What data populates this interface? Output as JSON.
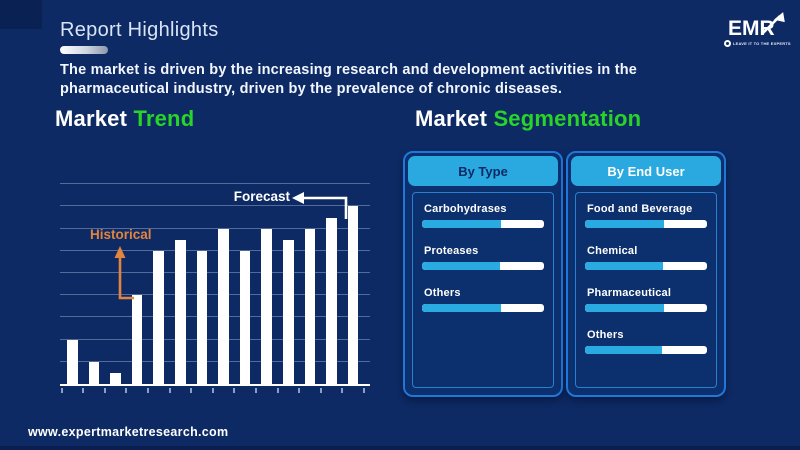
{
  "header": {
    "title": "Report Highlights",
    "headline": "The market is driven by the increasing research and development activities in the pharmaceutical industry, driven by the prevalence of chronic diseases."
  },
  "logo": {
    "name": "EMR",
    "tagline": "LEAVE IT TO THE EXPERTS"
  },
  "section_titles": {
    "trend_white": "Market",
    "trend_green": "Trend",
    "segmentation_white": "Market",
    "segmentation_green": "Segmentation"
  },
  "chart_data": {
    "type": "bar",
    "title": "Market Trend",
    "values": [
      2,
      1,
      0.5,
      4,
      6,
      6.5,
      6,
      7,
      6,
      7,
      6.5,
      7,
      7.5,
      8
    ],
    "ylim": [
      0,
      9
    ],
    "grid": "horizontal-on",
    "bar_color": "#ffffff",
    "annotations": {
      "historical_label": "Historical",
      "forecast_label": "Forecast"
    }
  },
  "segmentation": {
    "panels": [
      {
        "header": "By Type",
        "items": [
          {
            "label": "Carbohydrases",
            "value_pct": 65
          },
          {
            "label": "Proteases",
            "value_pct": 64
          },
          {
            "label": "Others",
            "value_pct": 65
          }
        ]
      },
      {
        "header": "By End User",
        "items": [
          {
            "label": "Food and Beverage",
            "value_pct": 65
          },
          {
            "label": "Chemical",
            "value_pct": 64
          },
          {
            "label": "Pharmaceutical",
            "value_pct": 65
          },
          {
            "label": "Others",
            "value_pct": 63
          }
        ]
      }
    ]
  },
  "footer": {
    "url": "www.expertmarketresearch.com"
  },
  "colors": {
    "background": "#0e2a64",
    "accent_green": "#28d428",
    "accent_orange": "#e08440",
    "accent_cyan": "#29a9e0",
    "panel_border": "#2176d9",
    "bar_white": "#ffffff"
  }
}
